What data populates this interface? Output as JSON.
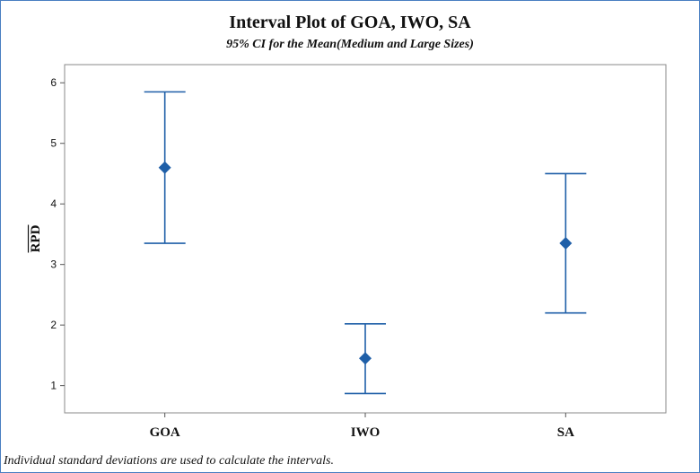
{
  "chart_data": {
    "type": "interval",
    "title": "Interval Plot of GOA, IWO, SA",
    "subtitle": "95% CI for the Mean(Medium and Large Sizes)",
    "ylabel": "RPD",
    "ylabel_overline": true,
    "categories": [
      "GOA",
      "IWO",
      "SA"
    ],
    "means": [
      4.6,
      1.45,
      3.35
    ],
    "lower": [
      3.35,
      0.87,
      2.2
    ],
    "upper": [
      5.85,
      2.02,
      4.5
    ],
    "yticks": [
      1,
      2,
      3,
      4,
      5,
      6
    ],
    "ylim": [
      0.55,
      6.3
    ],
    "grid": false,
    "colors": {
      "interval": "#1f5fa8",
      "marker": "#1f5fa8"
    },
    "footnote": "Individual standard deviations are used to calculate the intervals."
  }
}
